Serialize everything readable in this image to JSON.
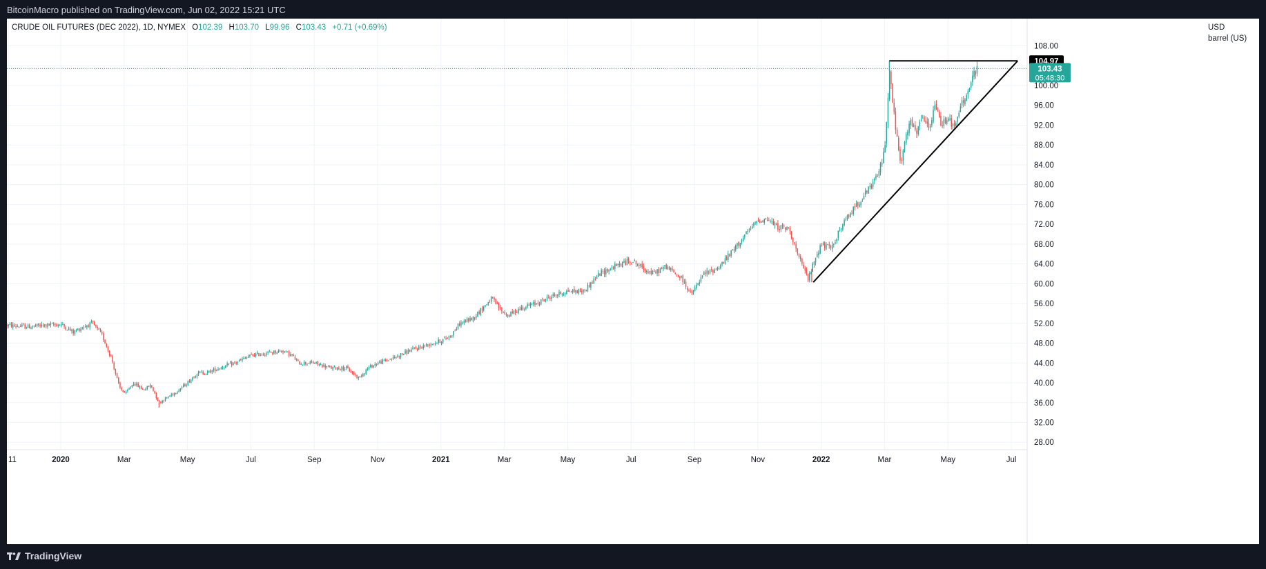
{
  "header": {
    "published_text": "BitcoinMacro published on TradingView.com, Jun 02, 2022 15:21 UTC"
  },
  "legend": {
    "symbol": "CRUDE OIL FUTURES (DEC 2022), 1D, NYMEX",
    "open_label": "O",
    "open": "102.39",
    "high_label": "H",
    "high": "103.70",
    "low_label": "L",
    "low": "99.96",
    "close_label": "C",
    "close": "103.43",
    "change": "+0.71 (+0.69%)"
  },
  "axis": {
    "currency": "USD",
    "unit": "barrel (US)"
  },
  "footer": {
    "brand": "TradingView"
  },
  "colors": {
    "up": "#26a69a",
    "down": "#ef5350",
    "grid": "#f0f3fa",
    "text": "#131722",
    "line": "#000000"
  },
  "chart_data": {
    "type": "candlestick",
    "title": "CRUDE OIL FUTURES (DEC 2022), 1D, NYMEX",
    "ylabel": "USD barrel (US)",
    "ylim": [
      26.5,
      113.5
    ],
    "y_ticks": [
      28,
      32,
      36,
      40,
      44,
      48,
      52,
      56,
      60,
      64,
      68,
      72,
      76,
      80,
      84,
      88,
      92,
      96,
      100,
      104,
      108
    ],
    "y_tick_labels": [
      "28.00",
      "32.00",
      "36.00",
      "40.00",
      "44.00",
      "48.00",
      "52.00",
      "56.00",
      "60.00",
      "64.00",
      "68.00",
      "72.00",
      "76.00",
      "80.00",
      "84.00",
      "88.00",
      "92.00",
      "96.00",
      "100.00",
      "104.00",
      "108.00"
    ],
    "x_range": [
      -0.7,
      31.5
    ],
    "x_ticks": [
      {
        "label": "11",
        "m": -0.65
      },
      {
        "label": "2020",
        "m": 1
      },
      {
        "label": "Mar",
        "m": 3
      },
      {
        "label": "May",
        "m": 5
      },
      {
        "label": "Jul",
        "m": 7
      },
      {
        "label": "Sep",
        "m": 9
      },
      {
        "label": "Nov",
        "m": 11
      },
      {
        "label": "2021",
        "m": 13
      },
      {
        "label": "Mar",
        "m": 15
      },
      {
        "label": "May",
        "m": 17
      },
      {
        "label": "Jul",
        "m": 19
      },
      {
        "label": "Sep",
        "m": 21
      },
      {
        "label": "Nov",
        "m": 23
      },
      {
        "label": "2022",
        "m": 25
      },
      {
        "label": "Mar",
        "m": 27
      },
      {
        "label": "May",
        "m": 29
      },
      {
        "label": "Jul",
        "m": 31
      }
    ],
    "x_tick_note": "m = months since Dec 2019 (0 = Dec 1 2019)",
    "price_path": [
      [
        -0.7,
        51.6
      ],
      [
        0.0,
        51.3
      ],
      [
        0.5,
        51.6
      ],
      [
        1.0,
        51.8
      ],
      [
        1.4,
        50.2
      ],
      [
        1.7,
        51.3
      ],
      [
        2.0,
        52.0
      ],
      [
        2.3,
        49.6
      ],
      [
        2.6,
        45.0
      ],
      [
        2.85,
        39.0
      ],
      [
        3.05,
        37.8
      ],
      [
        3.3,
        40.0
      ],
      [
        3.6,
        38.6
      ],
      [
        3.85,
        39.5
      ],
      [
        4.1,
        36.0
      ],
      [
        4.4,
        37.2
      ],
      [
        4.7,
        38.5
      ],
      [
        5.0,
        40.0
      ],
      [
        5.3,
        42.0
      ],
      [
        5.6,
        42.0
      ],
      [
        6.0,
        43.0
      ],
      [
        6.5,
        44.0
      ],
      [
        7.0,
        45.5
      ],
      [
        7.5,
        46.0
      ],
      [
        8.0,
        46.5
      ],
      [
        8.3,
        45.5
      ],
      [
        8.5,
        44.0
      ],
      [
        9.0,
        44.0
      ],
      [
        9.5,
        43.0
      ],
      [
        10.0,
        43.0
      ],
      [
        10.4,
        41.0
      ],
      [
        10.7,
        43.0
      ],
      [
        11.0,
        44.0
      ],
      [
        11.5,
        45.0
      ],
      [
        12.0,
        46.5
      ],
      [
        12.5,
        47.5
      ],
      [
        13.0,
        48.5
      ],
      [
        13.3,
        49.5
      ],
      [
        13.6,
        52.0
      ],
      [
        14.0,
        53.0
      ],
      [
        14.3,
        55.0
      ],
      [
        14.6,
        57.0
      ],
      [
        14.85,
        55.0
      ],
      [
        15.1,
        53.5
      ],
      [
        15.5,
        55.0
      ],
      [
        16.0,
        56.0
      ],
      [
        16.5,
        57.5
      ],
      [
        17.0,
        58.5
      ],
      [
        17.5,
        58.5
      ],
      [
        18.0,
        62.0
      ],
      [
        18.5,
        63.5
      ],
      [
        19.0,
        64.8
      ],
      [
        19.4,
        63.0
      ],
      [
        19.7,
        62.0
      ],
      [
        20.1,
        63.5
      ],
      [
        20.6,
        61.0
      ],
      [
        20.9,
        57.8
      ],
      [
        21.3,
        62.0
      ],
      [
        21.7,
        63.0
      ],
      [
        22.0,
        65.0
      ],
      [
        22.5,
        69.0
      ],
      [
        23.0,
        72.8
      ],
      [
        23.3,
        73.0
      ],
      [
        23.6,
        71.5
      ],
      [
        24.0,
        71.0
      ],
      [
        24.3,
        65.0
      ],
      [
        24.6,
        61.0
      ],
      [
        24.8,
        65.0
      ],
      [
        25.0,
        68.0
      ],
      [
        25.3,
        67.0
      ],
      [
        25.6,
        71.0
      ],
      [
        26.0,
        75.0
      ],
      [
        26.5,
        79.0
      ],
      [
        26.8,
        82.0
      ],
      [
        27.0,
        87.0
      ],
      [
        27.1,
        97.0
      ],
      [
        27.15,
        103.0
      ],
      [
        27.3,
        94.0
      ],
      [
        27.5,
        84.0
      ],
      [
        27.8,
        93.0
      ],
      [
        28.0,
        90.0
      ],
      [
        28.2,
        94.0
      ],
      [
        28.4,
        91.0
      ],
      [
        28.6,
        96.0
      ],
      [
        28.8,
        92.0
      ],
      [
        29.0,
        94.0
      ],
      [
        29.2,
        91.0
      ],
      [
        29.4,
        96.0
      ],
      [
        29.6,
        98.0
      ],
      [
        29.8,
        102.0
      ],
      [
        29.95,
        103.43
      ]
    ],
    "notable_points": [
      {
        "label": "2020 low",
        "m": 4.1,
        "low": 35.0
      },
      {
        "label": "Mar 2022 high",
        "m": 27.15,
        "high": 104.97
      },
      {
        "label": "Dec 2021 low",
        "m": 24.7,
        "low": 60.3
      }
    ],
    "last_price": 103.43,
    "last_price_label": "103.43",
    "countdown": "05:48:30",
    "resistance_level": 104.97,
    "resistance_label": "104.97",
    "trendlines": [
      {
        "name": "horizontal-resistance",
        "x1": 27.15,
        "y1": 104.97,
        "x2": 31.2,
        "y2": 104.97
      },
      {
        "name": "ascending-support",
        "x1": 24.75,
        "y1": 60.3,
        "x2": 31.2,
        "y2": 104.97
      }
    ]
  }
}
